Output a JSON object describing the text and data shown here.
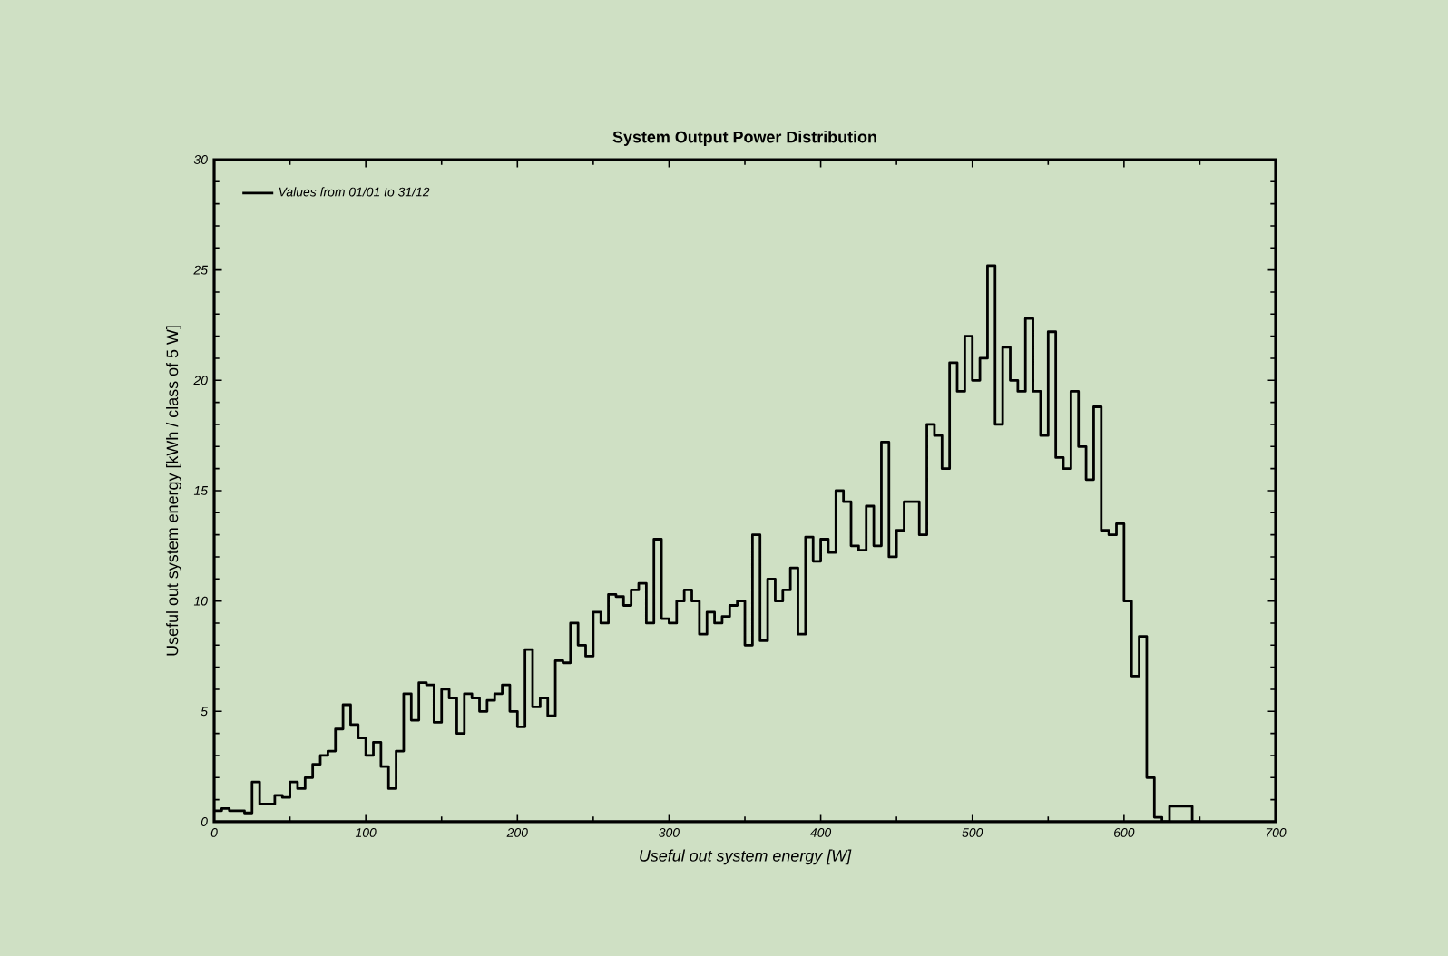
{
  "chart_data": {
    "type": "histogram",
    "title": "System Output Power Distribution",
    "xlabel": "Useful out system energy [W]",
    "ylabel": "Useful out system energy [kWh / class of 5 W]",
    "bins": [
      0,
      5,
      10,
      15,
      20,
      25,
      30,
      35,
      40,
      45,
      50,
      55,
      60,
      65,
      70,
      75,
      80,
      85,
      90,
      95,
      100,
      105,
      110,
      115,
      120,
      125,
      130,
      135,
      140,
      145,
      150,
      155,
      160,
      165,
      170,
      175,
      180,
      185,
      190,
      195,
      200,
      205,
      210,
      215,
      220,
      225,
      230,
      235,
      240,
      245,
      250,
      255,
      260,
      265,
      270,
      275,
      280,
      285,
      290,
      295,
      300,
      305,
      310,
      315,
      320,
      325,
      330,
      335,
      340,
      345,
      350,
      355,
      360,
      365,
      370,
      375,
      380,
      385,
      390,
      395,
      400,
      405,
      410,
      415,
      420,
      425,
      430,
      435,
      440,
      445,
      450,
      455,
      460,
      465,
      470,
      475,
      480,
      485,
      490,
      495,
      500,
      505,
      510,
      515,
      520,
      525,
      530,
      535,
      540,
      545,
      550,
      555,
      560,
      565,
      570,
      575,
      580,
      585,
      590,
      595,
      600,
      605,
      610,
      615,
      620,
      625,
      630,
      635,
      640,
      645,
      650
    ],
    "series": [
      {
        "name": "Values from 01/01 to 31/12",
        "color": "#000000",
        "values": [
          0.5,
          0.6,
          0.5,
          0.5,
          0.4,
          1.8,
          0.8,
          0.8,
          1.2,
          1.1,
          1.8,
          1.5,
          2.0,
          2.6,
          3.0,
          3.2,
          4.2,
          5.3,
          4.4,
          3.8,
          3.0,
          3.6,
          2.5,
          1.5,
          3.2,
          5.8,
          4.6,
          6.3,
          6.2,
          4.5,
          6.0,
          5.6,
          4.0,
          5.8,
          5.6,
          5.0,
          5.5,
          5.8,
          6.2,
          5.0,
          4.3,
          7.8,
          5.2,
          5.6,
          4.8,
          7.3,
          7.2,
          9.0,
          8.0,
          7.5,
          9.5,
          9.0,
          10.3,
          10.2,
          9.8,
          10.5,
          10.8,
          9.0,
          12.8,
          9.2,
          9.0,
          10.0,
          10.5,
          10.0,
          8.5,
          9.5,
          9.0,
          9.3,
          9.8,
          10.0,
          8.0,
          13.0,
          8.2,
          11.0,
          10.0,
          10.5,
          11.5,
          8.5,
          12.9,
          11.8,
          12.8,
          12.2,
          15.0,
          14.5,
          12.5,
          12.3,
          14.3,
          12.5,
          17.2,
          12.0,
          13.2,
          14.5,
          14.5,
          13.0,
          18.0,
          17.5,
          16.0,
          20.8,
          19.5,
          22.0,
          20.0,
          21.0,
          25.2,
          18.0,
          21.5,
          20.0,
          19.5,
          22.8,
          19.5,
          17.5,
          22.2,
          16.5,
          16.0,
          19.5,
          17.0,
          15.5,
          18.8,
          13.2,
          13.0,
          13.5,
          10.0,
          6.6,
          8.4,
          2.0,
          0.2,
          0.0,
          0.7,
          0.7,
          0.7,
          0.0
        ]
      }
    ],
    "xlim": [
      0,
      700
    ],
    "ylim": [
      0,
      30
    ],
    "xticks": [
      0,
      100,
      200,
      300,
      400,
      500,
      600,
      700
    ],
    "yticks": [
      0,
      5,
      10,
      15,
      20,
      25,
      30
    ],
    "legend": "top left"
  }
}
